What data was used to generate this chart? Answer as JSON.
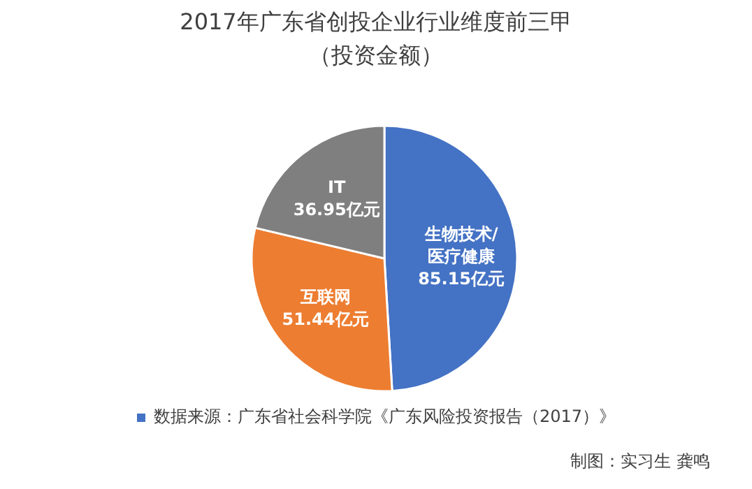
{
  "chart_data": {
    "type": "pie",
    "title": "2017年广东省创投企业行业维度前三甲",
    "subtitle": "（投资金额）",
    "categories": [
      "生物技术/医疗健康",
      "互联网",
      "IT"
    ],
    "values": [
      85.15,
      51.44,
      36.95
    ],
    "value_labels": [
      "85.15亿元",
      "51.44亿元",
      "36.95亿元"
    ],
    "colors": [
      "#4472c4",
      "#ed7d31",
      "#7f7f7f"
    ],
    "annotations": [
      "数据来源：广东省社会科学院《广东风险投资报告（2017）》",
      "制图：实习生 龚鸣"
    ]
  }
}
